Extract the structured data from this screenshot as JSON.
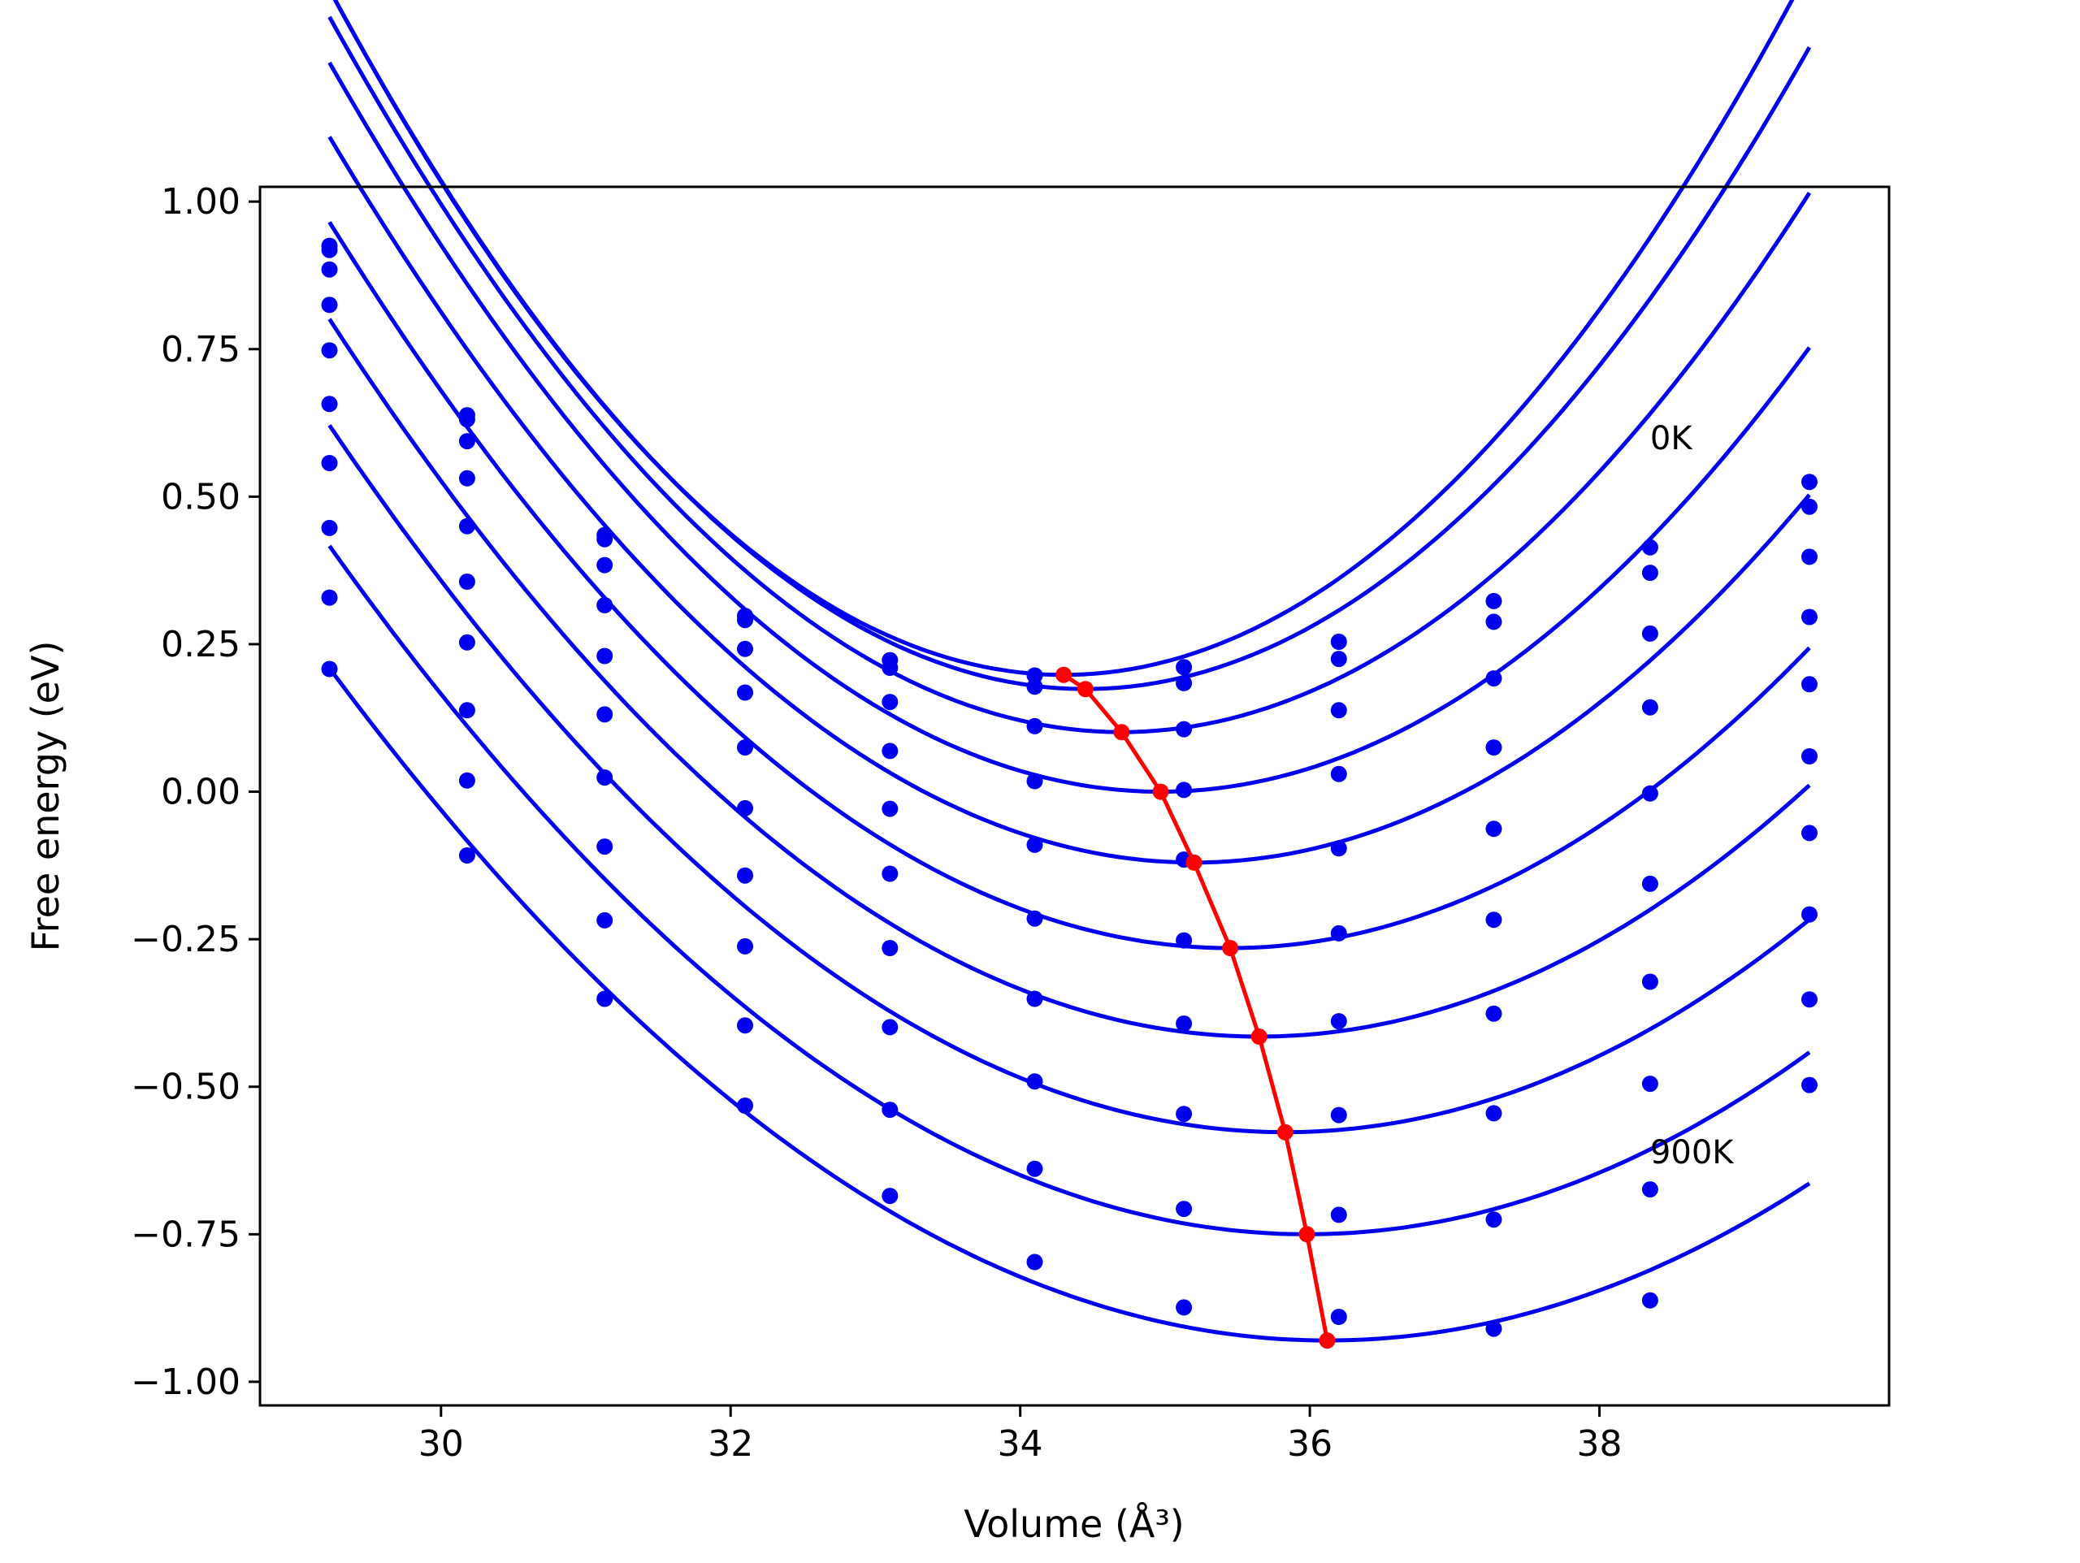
{
  "chart_data": {
    "type": "line",
    "title": "",
    "xlabel": "Volume (Å³)",
    "ylabel": "Free energy (eV)",
    "xlim": [
      28.75,
      40.0
    ],
    "ylim": [
      -1.04,
      1.025
    ],
    "x_ticks": [
      30,
      32,
      34,
      36,
      38
    ],
    "x_tick_labels": [
      "30",
      "32",
      "34",
      "36",
      "38"
    ],
    "y_ticks": [
      1.0,
      0.75,
      0.5,
      0.25,
      0.0,
      -0.25,
      -0.5,
      -0.75,
      -1.0
    ],
    "y_tick_labels": [
      "1.00",
      "0.75",
      "0.50",
      "0.25",
      "0.00",
      "−0.25",
      "−0.50",
      "−0.75",
      "−1.00"
    ],
    "grid": false,
    "legend": "none",
    "annotations": [
      {
        "text": "0K",
        "x": 38.35,
        "y": 0.58
      },
      {
        "text": "900K",
        "x": 38.35,
        "y": -0.63
      }
    ],
    "colors": {
      "curves": "#0000ee",
      "minima": "#ff0000",
      "axes": "#000000"
    },
    "x": [
      29.23,
      30.18,
      31.13,
      32.1,
      33.1,
      34.1,
      35.13,
      36.2,
      37.27,
      38.35,
      39.45
    ],
    "series": [
      {
        "values": [
          0.925,
          0.638,
          0.435,
          0.298,
          0.223,
          0.197,
          0.211,
          0.254,
          0.323,
          0.414,
          0.525
        ],
        "fit": {
          "a": 0.0452,
          "vmin": 34.3,
          "fmin": 0.198
        }
      },
      {
        "values": [
          0.918,
          0.631,
          0.428,
          0.291,
          0.21,
          0.178,
          0.184,
          0.225,
          0.288,
          0.371,
          0.483
        ],
        "fit": {
          "a": 0.0435,
          "vmin": 34.45,
          "fmin": 0.174
        }
      },
      {
        "values": [
          0.885,
          0.594,
          0.384,
          0.242,
          0.152,
          0.111,
          0.106,
          0.138,
          0.192,
          0.268,
          0.398
        ],
        "fit": {
          "a": 0.0405,
          "vmin": 34.7,
          "fmin": 0.101
        }
      },
      {
        "values": [
          0.825,
          0.531,
          0.316,
          0.168,
          0.069,
          0.018,
          0.003,
          0.03,
          0.075,
          0.143,
          0.296
        ],
        "fit": {
          "a": 0.0375,
          "vmin": 34.97,
          "fmin": 0.0
        }
      },
      {
        "values": [
          0.748,
          0.45,
          0.23,
          0.075,
          -0.029,
          -0.09,
          -0.115,
          -0.096,
          -0.063,
          -0.003,
          0.182
        ],
        "fit": {
          "a": 0.0345,
          "vmin": 35.2,
          "fmin": -0.12
        }
      },
      {
        "values": [
          0.657,
          0.356,
          0.131,
          -0.028,
          -0.139,
          -0.215,
          -0.252,
          -0.24,
          -0.217,
          -0.156,
          0.06
        ],
        "fit": {
          "a": 0.0318,
          "vmin": 35.45,
          "fmin": -0.265
        }
      },
      {
        "values": [
          0.557,
          0.253,
          0.024,
          -0.142,
          -0.265,
          -0.351,
          -0.393,
          -0.389,
          -0.376,
          -0.322,
          -0.07
        ],
        "fit": {
          "a": 0.0295,
          "vmin": 35.65,
          "fmin": -0.415
        }
      },
      {
        "values": [
          0.447,
          0.138,
          -0.093,
          -0.262,
          -0.399,
          -0.491,
          -0.546,
          -0.548,
          -0.545,
          -0.495,
          -0.208
        ],
        "fit": {
          "a": 0.0275,
          "vmin": 35.83,
          "fmin": -0.577
        }
      },
      {
        "values": [
          0.329,
          0.019,
          -0.218,
          -0.396,
          -0.539,
          -0.639,
          -0.707,
          -0.717,
          -0.725,
          -0.674,
          -0.352
        ],
        "fit": {
          "a": 0.0256,
          "vmin": 35.98,
          "fmin": -0.75
        }
      },
      {
        "values": [
          0.208,
          -0.108,
          -0.351,
          -0.532,
          -0.685,
          -0.797,
          -0.874,
          -0.89,
          -0.91,
          -0.862,
          -0.497
        ],
        "fit": {
          "a": 0.024,
          "vmin": 36.12,
          "fmin": -0.93
        }
      }
    ],
    "minima_path": {
      "x": [
        34.3,
        34.45,
        34.7,
        34.97,
        35.2,
        35.45,
        35.65,
        35.83,
        35.98,
        36.12
      ],
      "y": [
        0.198,
        0.174,
        0.101,
        0.0,
        -0.12,
        -0.265,
        -0.415,
        -0.577,
        -0.75,
        -0.93
      ]
    }
  }
}
